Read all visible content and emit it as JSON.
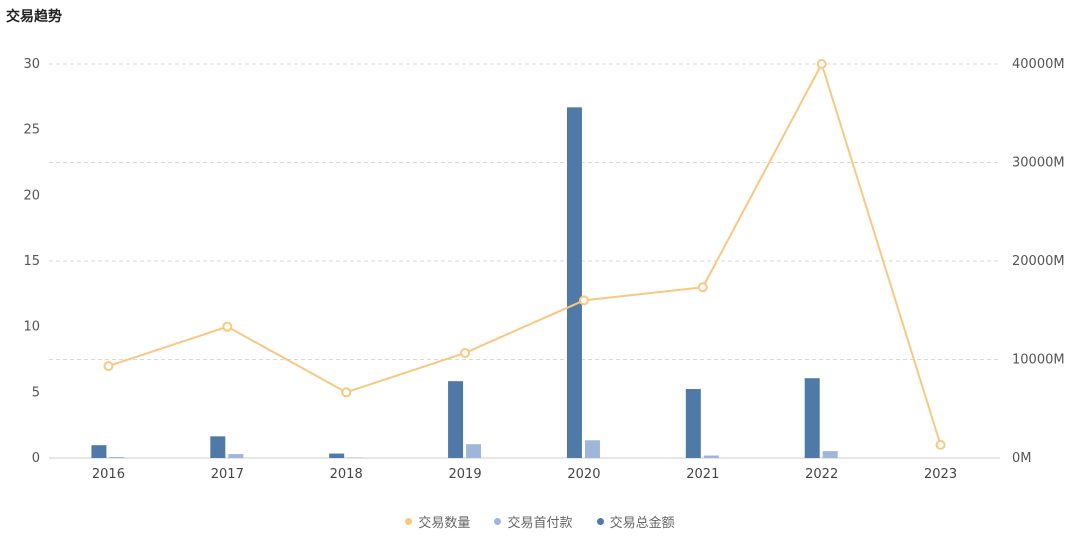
{
  "header": {
    "title": "交易趋势"
  },
  "chart_data": {
    "type": "bar",
    "categories": [
      "2016",
      "2017",
      "2018",
      "2019",
      "2020",
      "2021",
      "2022",
      "2023"
    ],
    "left_axis": {
      "min": 0,
      "max": 30,
      "ticks": [
        "0",
        "5",
        "10",
        "15",
        "20",
        "25",
        "30"
      ]
    },
    "right_axis": {
      "min": 0,
      "max": 40000,
      "unit": "M",
      "ticks": [
        "0M",
        "10000M",
        "20000M",
        "30000M",
        "40000M"
      ]
    },
    "grid": true,
    "legend_position": "bottom",
    "series": [
      {
        "name": "交易数量",
        "type": "line",
        "axis": "left",
        "color": "#F8C882",
        "values": [
          7,
          10,
          5,
          8,
          12,
          13,
          30,
          1
        ]
      },
      {
        "name": "交易首付款",
        "type": "bar",
        "axis": "right",
        "color": "#9DB6D9",
        "values": [
          100,
          400,
          50,
          1400,
          1800,
          250,
          700,
          0
        ]
      },
      {
        "name": "交易总金额",
        "type": "bar",
        "axis": "right",
        "color": "#4F79A6",
        "values": [
          1300,
          2200,
          450,
          7800,
          35600,
          7000,
          8100,
          0
        ]
      }
    ]
  }
}
